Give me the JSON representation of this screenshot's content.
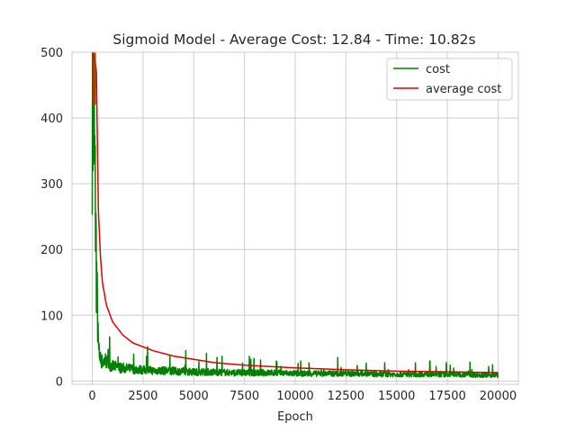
{
  "chart_data": {
    "type": "line",
    "title": "Sigmoid Model - Average Cost: 12.84 - Time: 10.82s",
    "xlabel": "Epoch",
    "ylabel": "",
    "xlim": [
      -1000,
      21000
    ],
    "ylim": [
      -5,
      500
    ],
    "x_ticks": [
      0,
      2500,
      5000,
      7500,
      10000,
      12500,
      15000,
      17500,
      20000
    ],
    "y_ticks": [
      0,
      100,
      200,
      300,
      400,
      500
    ],
    "grid": true,
    "legend_position": "top-right",
    "series": [
      {
        "name": "cost",
        "color": "#008000",
        "x": [
          0,
          40,
          80,
          120,
          160,
          200,
          240,
          280,
          320,
          400,
          500,
          650,
          800,
          1000,
          1300,
          1600,
          2000,
          2500,
          3000,
          3500,
          4000,
          4500,
          5000,
          6000,
          7000,
          8000,
          9000,
          10000,
          11000,
          12000,
          13000,
          14000,
          15000,
          16000,
          17000,
          18000,
          19000,
          20000
        ],
        "values": [
          460,
          430,
          380,
          320,
          250,
          180,
          120,
          70,
          40,
          30,
          25,
          28,
          22,
          20,
          18,
          17,
          16,
          15,
          14,
          14,
          13,
          13,
          12,
          12,
          11,
          11,
          11,
          10,
          10,
          10,
          10,
          9,
          9,
          9,
          9,
          9,
          8,
          8
        ]
      },
      {
        "name": "average cost",
        "color": "#e00000",
        "x": [
          0,
          100,
          200,
          300,
          400,
          500,
          700,
          1000,
          1500,
          2000,
          3000,
          4000,
          5000,
          6000,
          7500,
          10000,
          12500,
          15000,
          17500,
          20000
        ],
        "values": [
          500,
          495,
          470,
          260,
          190,
          150,
          115,
          90,
          70,
          58,
          46,
          38,
          33,
          28,
          24,
          20,
          17,
          15,
          14,
          12.84
        ]
      }
    ]
  }
}
